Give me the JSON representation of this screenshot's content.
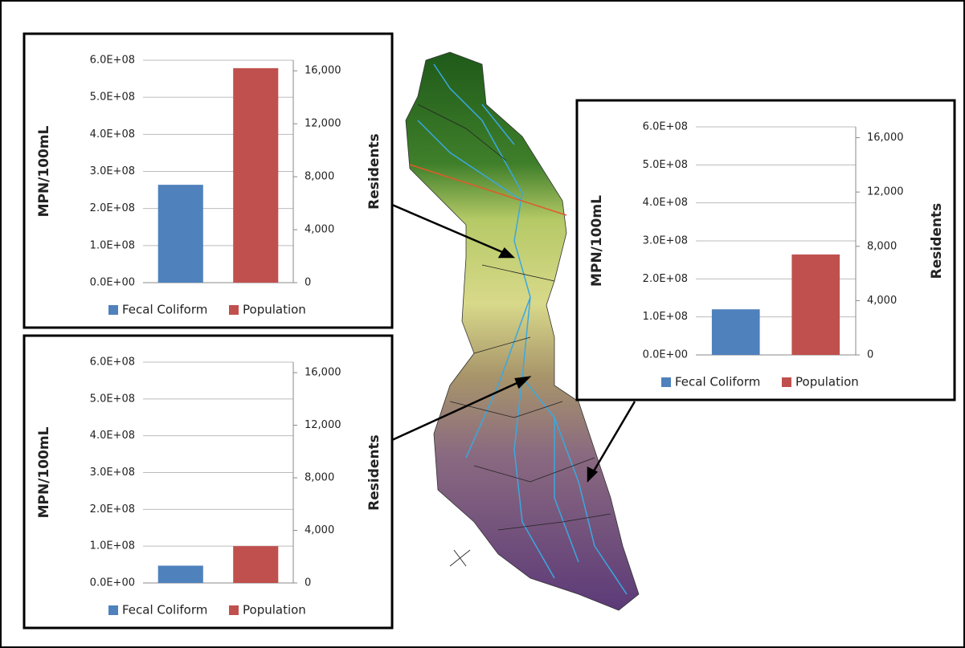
{
  "chart_data": [
    {
      "type": "bar",
      "categories": [
        null,
        null
      ],
      "series": [
        {
          "name": "Fecal Coliform",
          "color": "#4f81bd",
          "values": [
            264000000,
            null
          ]
        },
        {
          "name": "Population",
          "color": "#c0504d",
          "values": [
            null,
            16200
          ],
          "axis": "y2"
        }
      ],
      "ylabel": "MPN/100mL",
      "y2label": "Residents",
      "ylim": [
        0,
        600000000
      ],
      "yticks": [
        {
          "value": 0,
          "label": "0.0E+00"
        },
        {
          "value": 100000000,
          "label": "1.0E+08"
        },
        {
          "value": 200000000,
          "label": "2.0E+08"
        },
        {
          "value": 300000000,
          "label": "3.0E+08"
        },
        {
          "value": 400000000,
          "label": "4.0E+08"
        },
        {
          "value": 500000000,
          "label": "5.0E+08"
        },
        {
          "value": 600000000,
          "label": "6.0E+08"
        }
      ],
      "y2lim": [
        0,
        16800
      ],
      "y2ticks": [
        0,
        {
          "value": 4000,
          "label": "4,000"
        },
        {
          "value": 8000,
          "label": "8,000"
        },
        {
          "value": 12000,
          "label": "12,000"
        },
        {
          "value": 16000,
          "label": "16,000"
        }
      ],
      "grid": true,
      "legend": "bottom"
    },
    {
      "type": "bar",
      "categories": [
        null,
        null
      ],
      "series": [
        {
          "name": "Fecal Coliform",
          "color": "#4f81bd",
          "values": [
            120000000,
            null
          ]
        },
        {
          "name": "Population",
          "color": "#c0504d",
          "values": [
            null,
            7400
          ],
          "axis": "y2"
        }
      ],
      "ylabel": "MPN/100mL",
      "y2label": "Residents",
      "ylim": [
        0,
        600000000
      ],
      "yticks": [
        {
          "value": 0,
          "label": "0.0E+00"
        },
        {
          "value": 100000000,
          "label": "1.0E+08"
        },
        {
          "value": 200000000,
          "label": "2.0E+08"
        },
        {
          "value": 300000000,
          "label": "3.0E+08"
        },
        {
          "value": 400000000,
          "label": "4.0E+08"
        },
        {
          "value": 500000000,
          "label": "5.0E+08"
        },
        {
          "value": 600000000,
          "label": "6.0E+08"
        }
      ],
      "y2lim": [
        0,
        16800
      ],
      "y2ticks": [
        0,
        {
          "value": 4000,
          "label": "4,000"
        },
        {
          "value": 8000,
          "label": "8,000"
        },
        {
          "value": 12000,
          "label": "12,000"
        },
        {
          "value": 16000,
          "label": "16,000"
        }
      ],
      "grid": true,
      "legend": "bottom"
    },
    {
      "type": "bar",
      "categories": [
        null,
        null
      ],
      "series": [
        {
          "name": "Fecal Coliform",
          "color": "#4f81bd",
          "values": [
            47000000,
            null
          ]
        },
        {
          "name": "Population",
          "color": "#c0504d",
          "values": [
            null,
            2800
          ],
          "axis": "y2"
        }
      ],
      "ylabel": "MPN/100mL",
      "y2label": "Residents",
      "ylim": [
        0,
        600000000
      ],
      "yticks": [
        {
          "value": 0,
          "label": "0.0E+00"
        },
        {
          "value": 100000000,
          "label": "1.0E+08"
        },
        {
          "value": 200000000,
          "label": "2.0E+08"
        },
        {
          "value": 300000000,
          "label": "3.0E+08"
        },
        {
          "value": 400000000,
          "label": "4.0E+08"
        },
        {
          "value": 500000000,
          "label": "5.0E+08"
        },
        {
          "value": 600000000,
          "label": "6.0E+08"
        }
      ],
      "y2lim": [
        0,
        16800
      ],
      "y2ticks": [
        0,
        {
          "value": 4000,
          "label": "4,000"
        },
        {
          "value": 8000,
          "label": "8,000"
        },
        {
          "value": 12000,
          "label": "12,000"
        },
        {
          "value": 16000,
          "label": "16,000"
        }
      ],
      "grid": true,
      "legend": "bottom"
    }
  ]
}
